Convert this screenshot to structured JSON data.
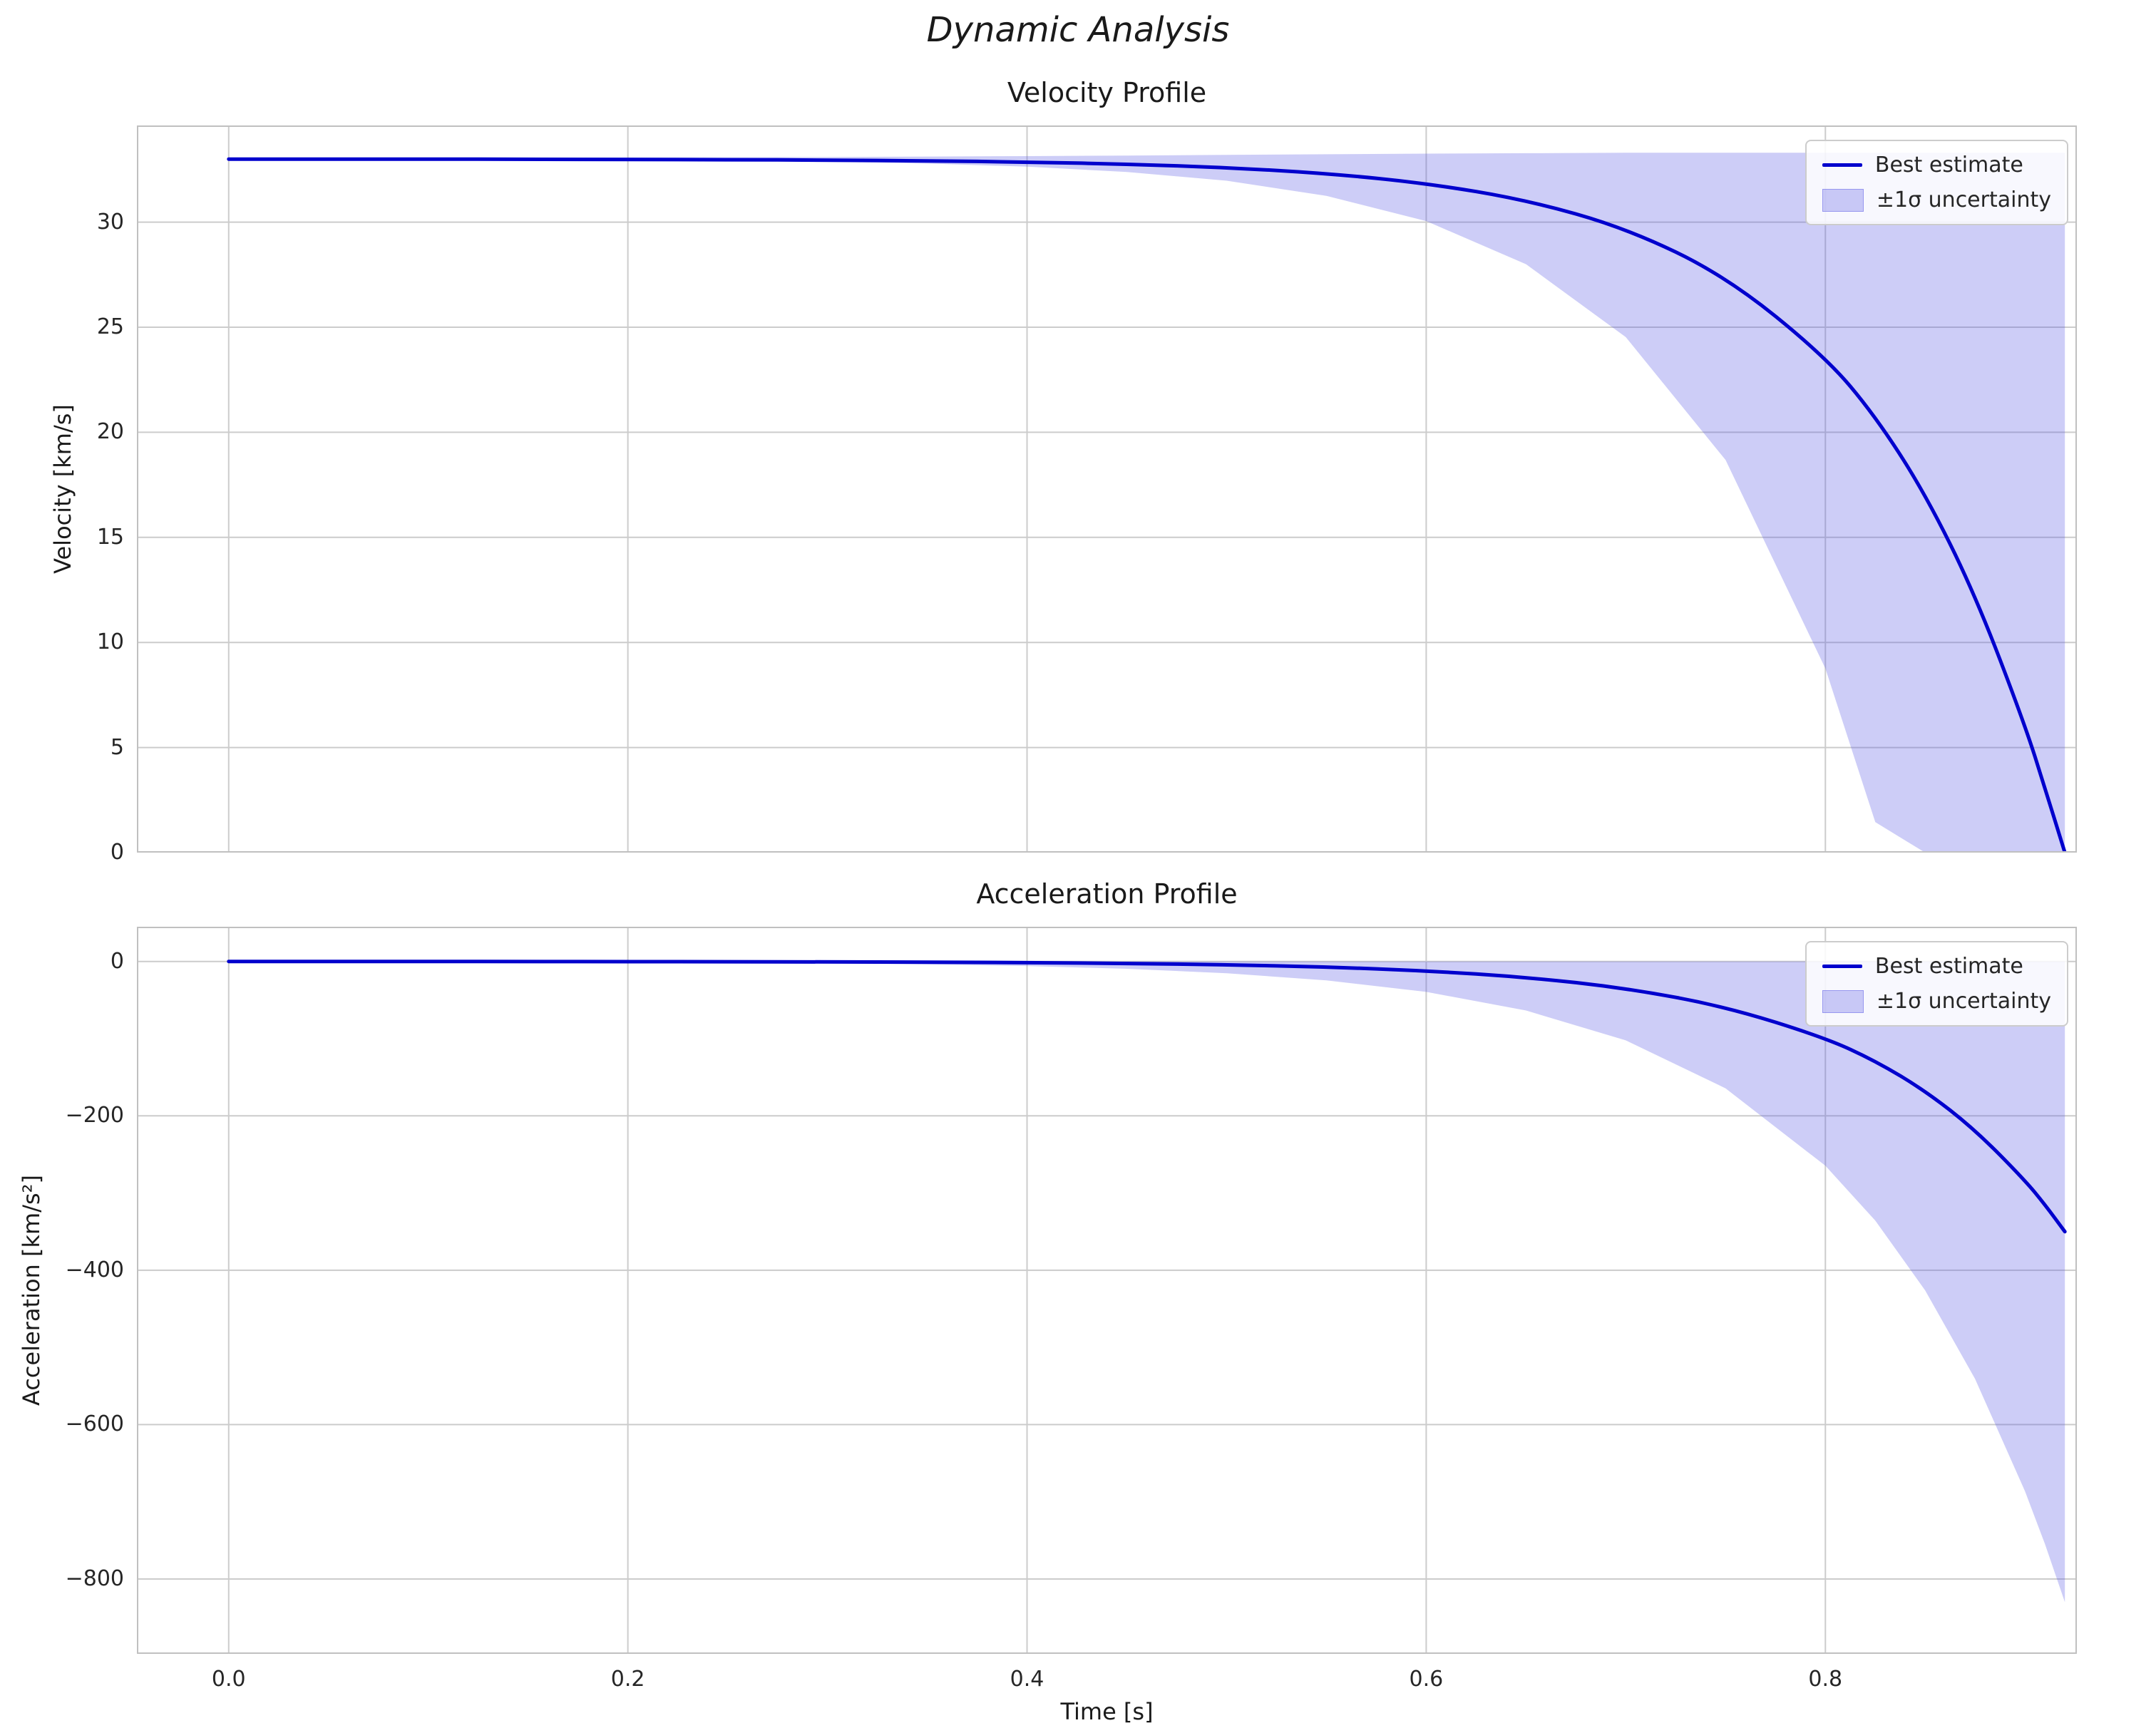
{
  "figure": {
    "suptitle": "Dynamic Analysis",
    "xlabel": "Time [s]",
    "colors": {
      "line": "#0000cd",
      "band": "rgba(90,90,230,0.30)",
      "band_edge": "rgba(90,90,230,0.45)",
      "grid": "#cccccc",
      "spine": "#c0c0c0",
      "text": "#262626"
    }
  },
  "chart_data": [
    {
      "type": "line",
      "title": "Velocity Profile",
      "ylabel": "Velocity [km/s]",
      "legend": {
        "line": "Best estimate",
        "band": "±1σ uncertainty"
      },
      "legend_position": "upper right",
      "grid": true,
      "xlim": [
        -0.046,
        0.926
      ],
      "ylim": [
        0,
        34.6
      ],
      "xticks": [
        0.0,
        0.2,
        0.4,
        0.6,
        0.8
      ],
      "xtick_labels": [
        "0.0",
        "0.2",
        "0.4",
        "0.6",
        "0.8"
      ],
      "show_xtick_labels": false,
      "yticks": [
        0,
        5,
        10,
        15,
        20,
        25,
        30
      ],
      "ytick_labels": [
        "0",
        "5",
        "10",
        "15",
        "20",
        "25",
        "30"
      ],
      "x": [
        0,
        0.05,
        0.1,
        0.15,
        0.2,
        0.25,
        0.3,
        0.35,
        0.4,
        0.45,
        0.5,
        0.55,
        0.6,
        0.65,
        0.7,
        0.75,
        0.8,
        0.825,
        0.85,
        0.875,
        0.9,
        0.91,
        0.92
      ],
      "series": [
        {
          "name": "Best estimate",
          "role": "best",
          "values": [
            33.0,
            33.0,
            33.0,
            32.99,
            32.98,
            32.97,
            32.95,
            32.92,
            32.86,
            32.76,
            32.6,
            32.32,
            31.85,
            31.06,
            29.72,
            27.44,
            23.6,
            20.77,
            17.08,
            12.29,
            6.07,
            3.07,
            0.0
          ]
        },
        {
          "name": "+1σ bound",
          "role": "upper",
          "values": [
            33.05,
            33.05,
            33.06,
            33.07,
            33.08,
            33.09,
            33.1,
            33.12,
            33.14,
            33.17,
            33.2,
            33.23,
            33.26,
            33.28,
            33.3,
            33.3,
            33.3,
            33.3,
            33.3,
            33.3,
            33.3,
            33.3,
            33.3
          ]
        },
        {
          "name": "−1σ bound",
          "role": "lower",
          "values": [
            33.0,
            33.0,
            32.98,
            32.97,
            32.96,
            32.93,
            32.87,
            32.79,
            32.64,
            32.39,
            31.97,
            31.25,
            30.05,
            28.0,
            24.53,
            18.68,
            8.76,
            1.45,
            0.0,
            0.0,
            0.0,
            0.0,
            0.0
          ]
        }
      ]
    },
    {
      "type": "line",
      "title": "Acceleration Profile",
      "ylabel": "Acceleration [km/s²]",
      "legend": {
        "line": "Best estimate",
        "band": "±1σ uncertainty"
      },
      "legend_position": "upper right",
      "grid": true,
      "xlim": [
        -0.046,
        0.926
      ],
      "ylim": [
        -897,
        45
      ],
      "xticks": [
        0.0,
        0.2,
        0.4,
        0.6,
        0.8
      ],
      "xtick_labels": [
        "0.0",
        "0.2",
        "0.4",
        "0.6",
        "0.8"
      ],
      "show_xtick_labels": true,
      "yticks": [
        0,
        -200,
        -400,
        -600,
        -800
      ],
      "ytick_labels": [
        "0",
        "−200",
        "−400",
        "−600",
        "−800"
      ],
      "x": [
        0,
        0.05,
        0.1,
        0.15,
        0.2,
        0.25,
        0.3,
        0.35,
        0.4,
        0.45,
        0.5,
        0.55,
        0.6,
        0.65,
        0.7,
        0.75,
        0.8,
        0.825,
        0.85,
        0.875,
        0.9,
        0.91,
        0.92
      ],
      "series": [
        {
          "name": "Best estimate",
          "role": "best",
          "values": [
            -0.02,
            -0.04,
            -0.06,
            -0.11,
            -0.18,
            -0.3,
            -0.51,
            -0.87,
            -1.47,
            -2.49,
            -4.21,
            -7.12,
            -12.05,
            -20.4,
            -34.5,
            -58.5,
            -99.0,
            -128.8,
            -167.5,
            -218.0,
            -283.6,
            -315.0,
            -350.0
          ]
        },
        {
          "name": "+1σ bound",
          "role": "upper",
          "values": [
            0.0,
            0.0,
            0.0,
            0.0,
            0.0,
            0.0,
            0.0,
            0.0,
            0.0,
            0.0,
            0.0,
            0.0,
            0.0,
            0.0,
            0.0,
            0.0,
            0.0,
            0.0,
            0.0,
            0.0,
            0.0,
            0.0,
            0.0
          ]
        },
        {
          "name": "−1σ bound",
          "role": "lower",
          "values": [
            -0.13,
            -0.21,
            -0.34,
            -0.54,
            -0.87,
            -1.4,
            -2.26,
            -3.64,
            -5.87,
            -9.46,
            -15.2,
            -24.5,
            -39.4,
            -63.5,
            -102.2,
            -164.4,
            -264.7,
            -335.8,
            -426.1,
            -540.7,
            -686.2,
            -754.6,
            -830.0
          ]
        }
      ]
    }
  ]
}
